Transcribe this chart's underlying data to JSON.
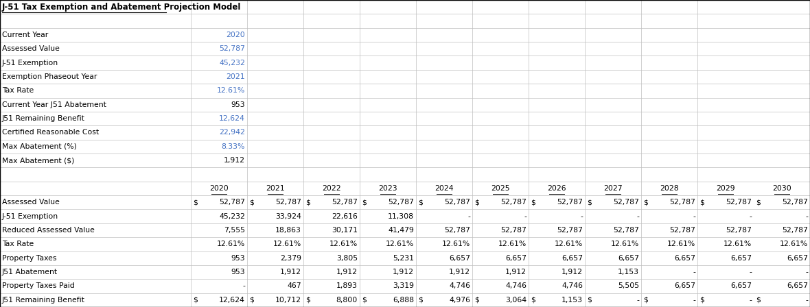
{
  "title": "J-51 Tax Exemption and Abatement Projection Model",
  "summary_rows": [
    {
      "label": "Current Year",
      "value": "2020",
      "blue": true
    },
    {
      "label": "Assessed Value",
      "value": "52,787",
      "blue": true
    },
    {
      "label": "J-51 Exemption",
      "value": "45,232",
      "blue": true
    },
    {
      "label": "Exemption Phaseout Year",
      "value": "2021",
      "blue": true
    },
    {
      "label": "Tax Rate",
      "value": "12.61%",
      "blue": true
    },
    {
      "label": "Current Year J51 Abatement",
      "value": "953",
      "blue": false
    },
    {
      "label": "J51 Remaining Benefit",
      "value": "12,624",
      "blue": true
    },
    {
      "label": "Certified Reasonable Cost",
      "value": "22,942",
      "blue": true
    },
    {
      "label": "Max Abatement (%)",
      "value": "8.33%",
      "blue": true
    },
    {
      "label": "Max Abatement ($)",
      "value": "1,912",
      "blue": false
    }
  ],
  "years": [
    "2020",
    "2021",
    "2022",
    "2023",
    "2024",
    "2025",
    "2026",
    "2027",
    "2028",
    "2029",
    "2030"
  ],
  "detail_rows": [
    {
      "label": "Assessed Value",
      "dollar_cols": [
        0,
        1,
        2,
        3,
        4,
        5,
        6,
        7,
        8,
        9,
        10
      ],
      "values": [
        "52,787",
        "52,787",
        "52,787",
        "52,787",
        "52,787",
        "52,787",
        "52,787",
        "52,787",
        "52,787",
        "52,787",
        "52,787"
      ]
    },
    {
      "label": "J-51 Exemption",
      "dollar_cols": [],
      "values": [
        "45,232",
        "33,924",
        "22,616",
        "11,308",
        "-",
        "-",
        "-",
        "-",
        "-",
        "-",
        "-"
      ]
    },
    {
      "label": "Reduced Assessed Value",
      "dollar_cols": [],
      "values": [
        "7,555",
        "18,863",
        "30,171",
        "41,479",
        "52,787",
        "52,787",
        "52,787",
        "52,787",
        "52,787",
        "52,787",
        "52,787"
      ]
    },
    {
      "label": "Tax Rate",
      "dollar_cols": [],
      "values": [
        "12.61%",
        "12.61%",
        "12.61%",
        "12.61%",
        "12.61%",
        "12.61%",
        "12.61%",
        "12.61%",
        "12.61%",
        "12.61%",
        "12.61%"
      ]
    },
    {
      "label": "Property Taxes",
      "dollar_cols": [],
      "values": [
        "953",
        "2,379",
        "3,805",
        "5,231",
        "6,657",
        "6,657",
        "6,657",
        "6,657",
        "6,657",
        "6,657",
        "6,657"
      ]
    },
    {
      "label": "J51 Abatement",
      "dollar_cols": [],
      "values": [
        "953",
        "1,912",
        "1,912",
        "1,912",
        "1,912",
        "1,912",
        "1,912",
        "1,153",
        "-",
        "-",
        "-"
      ]
    },
    {
      "label": "Property Taxes Paid",
      "dollar_cols": [],
      "values": [
        "-",
        "467",
        "1,893",
        "3,319",
        "4,746",
        "4,746",
        "4,746",
        "5,505",
        "6,657",
        "6,657",
        "6,657"
      ]
    },
    {
      "label": "J51 Remaining Benefit",
      "dollar_cols": [
        0,
        1,
        2,
        3,
        4,
        5,
        6,
        7,
        8,
        9,
        10
      ],
      "values": [
        "12,624",
        "10,712",
        "8,800",
        "6,888",
        "4,976",
        "3,064",
        "1,153",
        "-",
        "-",
        "-",
        "-"
      ]
    }
  ],
  "blue_color": "#4472C4",
  "black_color": "#000000",
  "grid_color": "#BFBFBF"
}
